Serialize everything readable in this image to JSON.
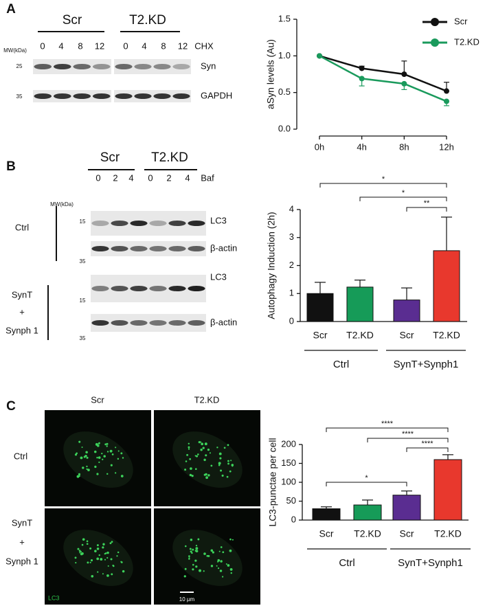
{
  "panel_labels": [
    "A",
    "B",
    "C"
  ],
  "blot_a": {
    "groups": [
      "Scr",
      "T2.KD"
    ],
    "lanes": [
      "0",
      "4",
      "8",
      "12",
      "0",
      "4",
      "8",
      "12"
    ],
    "treatment": "CHX",
    "mw_label": "MW(kDa)",
    "mw": [
      "25",
      "35"
    ],
    "bands": [
      "Syn",
      "GAPDH"
    ]
  },
  "blot_b": {
    "groups": [
      "Scr",
      "T2.KD"
    ],
    "lanes": [
      "0",
      "2",
      "4",
      "0",
      "2",
      "4"
    ],
    "treatment": "Baf",
    "mw_label": "MW(kDa)",
    "rows": [
      {
        "condition": [
          "Ctrl"
        ],
        "mw": [
          "15",
          "35"
        ],
        "bands": [
          "LC3",
          "β-actin"
        ]
      },
      {
        "condition": [
          "SynT",
          "+",
          "Synph 1"
        ],
        "mw": [
          "15",
          "35"
        ],
        "bands": [
          "LC3",
          "β-actin"
        ]
      }
    ]
  },
  "micrographs": {
    "columns": [
      "Scr",
      "T2.KD"
    ],
    "rows": [
      [
        "Ctrl"
      ],
      [
        "SynT",
        "+",
        "Synph 1"
      ]
    ],
    "channel": "LC3",
    "scale_bar": "10 µm"
  },
  "chart_data": [
    {
      "type": "line",
      "ylabel": "aSyn levels (Au)",
      "categories": [
        "0h",
        "4h",
        "8h",
        "12h"
      ],
      "series": [
        {
          "name": "Scr",
          "color": "#111111",
          "values": [
            1.0,
            0.83,
            0.75,
            0.52
          ],
          "errors": [
            0,
            0.03,
            0.18,
            0.12
          ]
        },
        {
          "name": "T2.KD",
          "color": "#1a9a5c",
          "values": [
            1.0,
            0.69,
            0.62,
            0.38
          ],
          "errors": [
            0,
            0.1,
            0.08,
            0.06
          ]
        }
      ],
      "ylim": [
        0,
        1.5
      ],
      "yticks": [
        {
          "value": 0,
          "label": "0.0"
        },
        {
          "value": 0.5,
          "label": "0.5"
        },
        {
          "value": 1,
          "label": "1.0"
        },
        {
          "value": 1.5,
          "label": "1.5"
        }
      ],
      "legend": "top-right"
    },
    {
      "type": "bar",
      "ylabel": "Autophagy Induction (2h)",
      "categories": [
        "Scr",
        "T2.KD",
        "Scr",
        "T2.KD"
      ],
      "groups": [
        "Ctrl",
        "SynT+Synph1"
      ],
      "values": [
        1.0,
        1.23,
        0.77,
        2.53
      ],
      "errors": [
        0.4,
        0.25,
        0.43,
        1.2
      ],
      "colors": [
        "#111111",
        "#169b58",
        "#5a2d91",
        "#e8382d"
      ],
      "ylim": [
        0,
        4
      ],
      "yticks": [
        0,
        1,
        2,
        3,
        4
      ],
      "significance": [
        "*",
        "*",
        "**"
      ]
    },
    {
      "type": "bar",
      "ylabel": "LC3-punctae per cell",
      "categories": [
        "Scr",
        "T2.KD",
        "Scr",
        "T2.KD"
      ],
      "groups": [
        "Ctrl",
        "SynT+Synph1"
      ],
      "values": [
        30,
        40,
        66,
        160
      ],
      "errors": [
        5,
        13,
        11,
        13
      ],
      "colors": [
        "#111111",
        "#169b58",
        "#5a2d91",
        "#e8382d"
      ],
      "ylim": [
        0,
        200
      ],
      "yticks": [
        0,
        50,
        100,
        150,
        200
      ],
      "significance": [
        "****",
        "****",
        "****",
        "*"
      ]
    }
  ]
}
